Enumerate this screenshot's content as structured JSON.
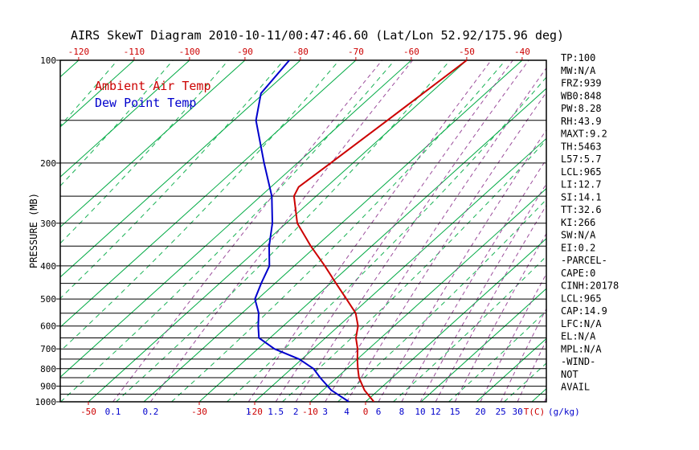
{
  "title": "AIRS SkewT Diagram 2010-10-11/00:47:46.60 (Lat/Lon 52.92/175.96 deg)",
  "legend": {
    "ambient_label": "Ambient Air Temp",
    "dewpoint_label": "Dew Point Temp"
  },
  "info_panel": {
    "lines": [
      "TP:100",
      "MW:N/A",
      "FRZ:939",
      "WB0:848",
      "PW:8.28",
      "RH:43.9",
      "MAXT:9.2",
      "TH:5463",
      "L57:5.7",
      "LCL:965",
      "LI:12.7",
      "SI:14.1",
      "TT:32.6",
      "KI:266",
      "SW:N/A",
      "EI:0.2",
      "-PARCEL-",
      "CAPE:0",
      "CINH:20178",
      "LCL:965",
      "CAP:14.9",
      "LFC:N/A",
      "EL:N/A",
      "MPL:N/A",
      "-WIND-",
      "NOT",
      "AVAIL"
    ]
  },
  "colors": {
    "ambient": "#cc0000",
    "dewpoint": "#0000cc",
    "isotherm": "#00aa44",
    "mixing_line": "#8b2f8b",
    "axis": "#000000"
  },
  "chart_data": {
    "type": "line",
    "title": "AIRS SkewT Diagram 2010-10-11/00:47:46.60 (Lat/Lon 52.92/175.96 deg)",
    "x_axis": {
      "label": "T(C)",
      "top_ticks": [
        -120,
        -110,
        -100,
        -90,
        -80,
        -70,
        -60,
        -50,
        -40
      ],
      "bottom_ticks": [
        -50,
        -30,
        -20,
        -10,
        0
      ]
    },
    "y_axis": {
      "label": "PRESSURE (MB)",
      "scale": "log",
      "range": [
        100,
        1000
      ],
      "ticks": [
        100,
        200,
        300,
        400,
        500,
        600,
        700,
        800,
        900,
        1000
      ],
      "gridlines": [
        100,
        150,
        200,
        250,
        300,
        350,
        400,
        450,
        500,
        550,
        600,
        650,
        700,
        750,
        800,
        850,
        900,
        950,
        1000
      ]
    },
    "mixing_ratio": {
      "unit": "(g/kg)",
      "values": [
        0.1,
        0.2,
        1,
        1.5,
        2,
        3,
        4,
        6,
        8,
        10,
        12,
        15,
        20,
        25,
        30,
        40
      ],
      "labels": [
        0.1,
        0.2,
        1,
        1.5,
        2,
        3,
        4,
        6,
        8,
        10,
        12,
        15,
        20,
        25,
        30
      ]
    },
    "isotherms": {
      "solid_range": [
        -130,
        50
      ],
      "solid_step": 10,
      "dashed_offset": 5
    },
    "series": [
      {
        "name": "Ambient Air Temp",
        "color": "#cc0000",
        "points": [
          [
            1000,
            1.5
          ],
          [
            925,
            -2.5
          ],
          [
            850,
            -6
          ],
          [
            800,
            -8
          ],
          [
            750,
            -10
          ],
          [
            700,
            -12
          ],
          [
            650,
            -14.5
          ],
          [
            600,
            -16.5
          ],
          [
            550,
            -19.5
          ],
          [
            500,
            -24
          ],
          [
            450,
            -29
          ],
          [
            400,
            -34.5
          ],
          [
            350,
            -41
          ],
          [
            300,
            -48
          ],
          [
            250,
            -54
          ],
          [
            235,
            -55
          ],
          [
            200,
            -54
          ],
          [
            150,
            -52.3
          ],
          [
            100,
            -50
          ]
        ]
      },
      {
        "name": "Dew Point Temp",
        "color": "#0000cc",
        "points": [
          [
            1000,
            -3
          ],
          [
            925,
            -8.5
          ],
          [
            850,
            -13
          ],
          [
            800,
            -16
          ],
          [
            750,
            -20.5
          ],
          [
            700,
            -27
          ],
          [
            650,
            -32
          ],
          [
            600,
            -34.5
          ],
          [
            550,
            -37
          ],
          [
            500,
            -40.5
          ],
          [
            450,
            -42.5
          ],
          [
            400,
            -44.5
          ],
          [
            350,
            -48.5
          ],
          [
            300,
            -52.5
          ],
          [
            250,
            -58
          ],
          [
            200,
            -66
          ],
          [
            150,
            -76
          ],
          [
            125,
            -80.5
          ],
          [
            100,
            -82
          ]
        ]
      }
    ]
  }
}
